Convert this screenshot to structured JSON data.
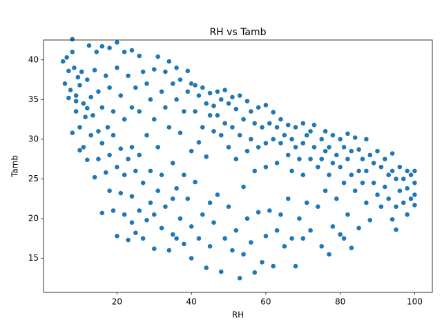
{
  "chart_data": {
    "type": "scatter",
    "title": "RH vs Tamb",
    "x_label": "RH",
    "y_label": "Tamb",
    "color": "#1f77b4",
    "x": [
      5.5,
      6,
      6.5,
      7,
      7.5,
      8,
      8,
      8.5,
      9,
      9,
      9.5,
      10,
      10,
      10.5,
      11,
      11,
      11.5,
      12,
      12,
      12.5,
      13,
      13,
      13.5,
      14,
      14,
      14.5,
      15,
      15,
      15,
      8,
      10,
      12,
      9,
      7,
      16,
      16,
      16,
      16,
      17,
      17,
      17.5,
      18,
      18,
      18,
      18,
      19,
      19,
      19,
      20,
      20,
      20,
      20,
      21,
      21,
      21,
      22,
      22,
      22,
      22,
      23,
      23,
      23,
      24,
      24,
      24,
      24,
      24,
      25,
      25,
      25,
      26,
      26,
      26,
      26,
      27,
      27,
      27,
      28,
      28,
      28,
      29,
      29,
      29,
      30,
      30,
      30,
      30,
      31,
      31,
      31,
      32,
      32,
      32,
      33,
      33,
      33,
      34,
      34,
      34,
      35,
      35,
      35,
      35,
      36,
      36,
      36,
      36,
      37,
      37,
      37,
      38,
      38,
      38,
      39,
      39,
      39,
      40,
      40,
      40,
      40,
      41,
      41,
      41,
      42,
      42,
      42,
      43,
      43,
      43,
      44,
      44,
      44,
      45,
      45,
      45,
      45,
      46,
      46,
      46,
      47,
      47,
      47,
      48,
      48,
      48,
      49,
      49,
      49,
      50,
      50,
      50,
      51,
      51,
      51,
      52,
      52,
      52,
      53,
      53,
      53,
      54,
      54,
      54,
      55,
      55,
      55,
      56,
      56,
      56,
      57,
      57,
      57,
      58,
      58,
      58,
      59,
      59,
      60,
      60,
      60,
      60,
      61,
      61,
      62,
      62,
      62,
      63,
      63,
      63,
      64,
      64,
      64,
      65,
      65,
      66,
      66,
      66,
      67,
      67,
      67,
      68,
      68,
      68,
      69,
      69,
      70,
      70,
      70,
      70,
      71,
      71,
      72,
      72,
      72,
      73,
      73,
      74,
      74,
      75,
      75,
      75,
      76,
      76,
      76,
      77,
      77,
      77,
      78,
      78,
      78,
      79,
      79,
      80,
      80,
      80,
      81,
      81,
      81,
      82,
      82,
      82,
      83,
      83,
      83,
      84,
      84,
      85,
      85,
      85,
      86,
      86,
      87,
      87,
      87,
      88,
      88,
      89,
      89,
      90,
      90,
      91,
      91,
      92,
      92,
      93,
      93,
      94,
      94,
      94,
      95,
      95,
      95,
      96,
      96,
      97,
      97,
      98,
      98,
      98,
      99,
      99,
      100,
      100,
      100,
      100
    ],
    "values": [
      39.8,
      37,
      40.3,
      38.6,
      36.2,
      42.6,
      41,
      39,
      35.5,
      33.5,
      37.8,
      36.8,
      31.5,
      38.5,
      34.5,
      29,
      32.8,
      37.5,
      27.4,
      41.8,
      35.3,
      30.5,
      33,
      38.7,
      25.2,
      41,
      36,
      31,
      27.5,
      30.8,
      28.6,
      33.9,
      34.8,
      35.2,
      41.7,
      34,
      29.5,
      20.7,
      38,
      25.8,
      31.5,
      41.5,
      36.5,
      28,
      23.5,
      33.5,
      30.5,
      21,
      42.2,
      39,
      26.5,
      17.8,
      35.5,
      28.8,
      23.2,
      41,
      32.5,
      25.5,
      20.5,
      38,
      27.5,
      17.3,
      41.2,
      34,
      29,
      22.8,
      19.5,
      36.5,
      26,
      18.2,
      40.5,
      33.5,
      28,
      21,
      38.5,
      24.5,
      17.5,
      37,
      30.5,
      19.8,
      35,
      26,
      22,
      38.8,
      32.5,
      20.5,
      16.2,
      40.4,
      29,
      23.5,
      36,
      25.5,
      18.8,
      38.5,
      34,
      21.5,
      39.8,
      31.5,
      16,
      37,
      27,
      22.5,
      18,
      39,
      35,
      23.8,
      17.5,
      37.5,
      30.8,
      20,
      33.5,
      25.5,
      16.8,
      38.6,
      36,
      22.5,
      37,
      28.5,
      19,
      15,
      36.8,
      33.5,
      24.6,
      35.5,
      29.6,
      17.5,
      36.5,
      31.5,
      20.5,
      34.5,
      27.8,
      13.8,
      35.8,
      33,
      22,
      16.5,
      34.2,
      31,
      19.5,
      36,
      33,
      23,
      35,
      30.5,
      13.3,
      36.2,
      32,
      17.5,
      34.5,
      29,
      21.5,
      35.3,
      31.5,
      16,
      33.8,
      27.5,
      18.5,
      35.5,
      30.5,
      12.5,
      32.5,
      24,
      15.5,
      34.8,
      28.5,
      20,
      33.5,
      30,
      17,
      32,
      26,
      13.2,
      34,
      29,
      20.8,
      31.5,
      14.5,
      34.3,
      29.5,
      26.5,
      17.8,
      32,
      21,
      33.4,
      30,
      14,
      31.5,
      27,
      18.5,
      32.5,
      29.5,
      20.5,
      30.5,
      16.5,
      31.8,
      28,
      22.5,
      30,
      26,
      17.5,
      31.5,
      29,
      14,
      27.5,
      20,
      32,
      29.5,
      25.5,
      17.5,
      30.5,
      22,
      31,
      27.5,
      18.5,
      31.8,
      29,
      26.5,
      21.5,
      30,
      27.5,
      16.5,
      31,
      28.5,
      23.5,
      29,
      25.5,
      15.5,
      30.5,
      27,
      19,
      28,
      22.5,
      30,
      26.5,
      18,
      29,
      24.5,
      17.5,
      30.7,
      27.5,
      20.5,
      28.5,
      25.5,
      16.3,
      30.2,
      23.5,
      28.7,
      26,
      18.8,
      27.5,
      24.5,
      30,
      26,
      22,
      28,
      19.8,
      27,
      24.5,
      28.5,
      23,
      26.5,
      21.5,
      27.5,
      24,
      25.5,
      22.5,
      28.2,
      26,
      19.9,
      25,
      21.5,
      18.6,
      26.5,
      23.5,
      25,
      22,
      26,
      23.8,
      20.5,
      25.5,
      22.5,
      24.5,
      21.7,
      26,
      23
    ],
    "xlim": [
      0.25,
      104.75
    ],
    "ylim": [
      10.7,
      42.5
    ],
    "xticks": [
      20,
      40,
      60,
      80,
      100
    ],
    "yticks": [
      15,
      20,
      25,
      30,
      35,
      40
    ],
    "grid": false
  }
}
